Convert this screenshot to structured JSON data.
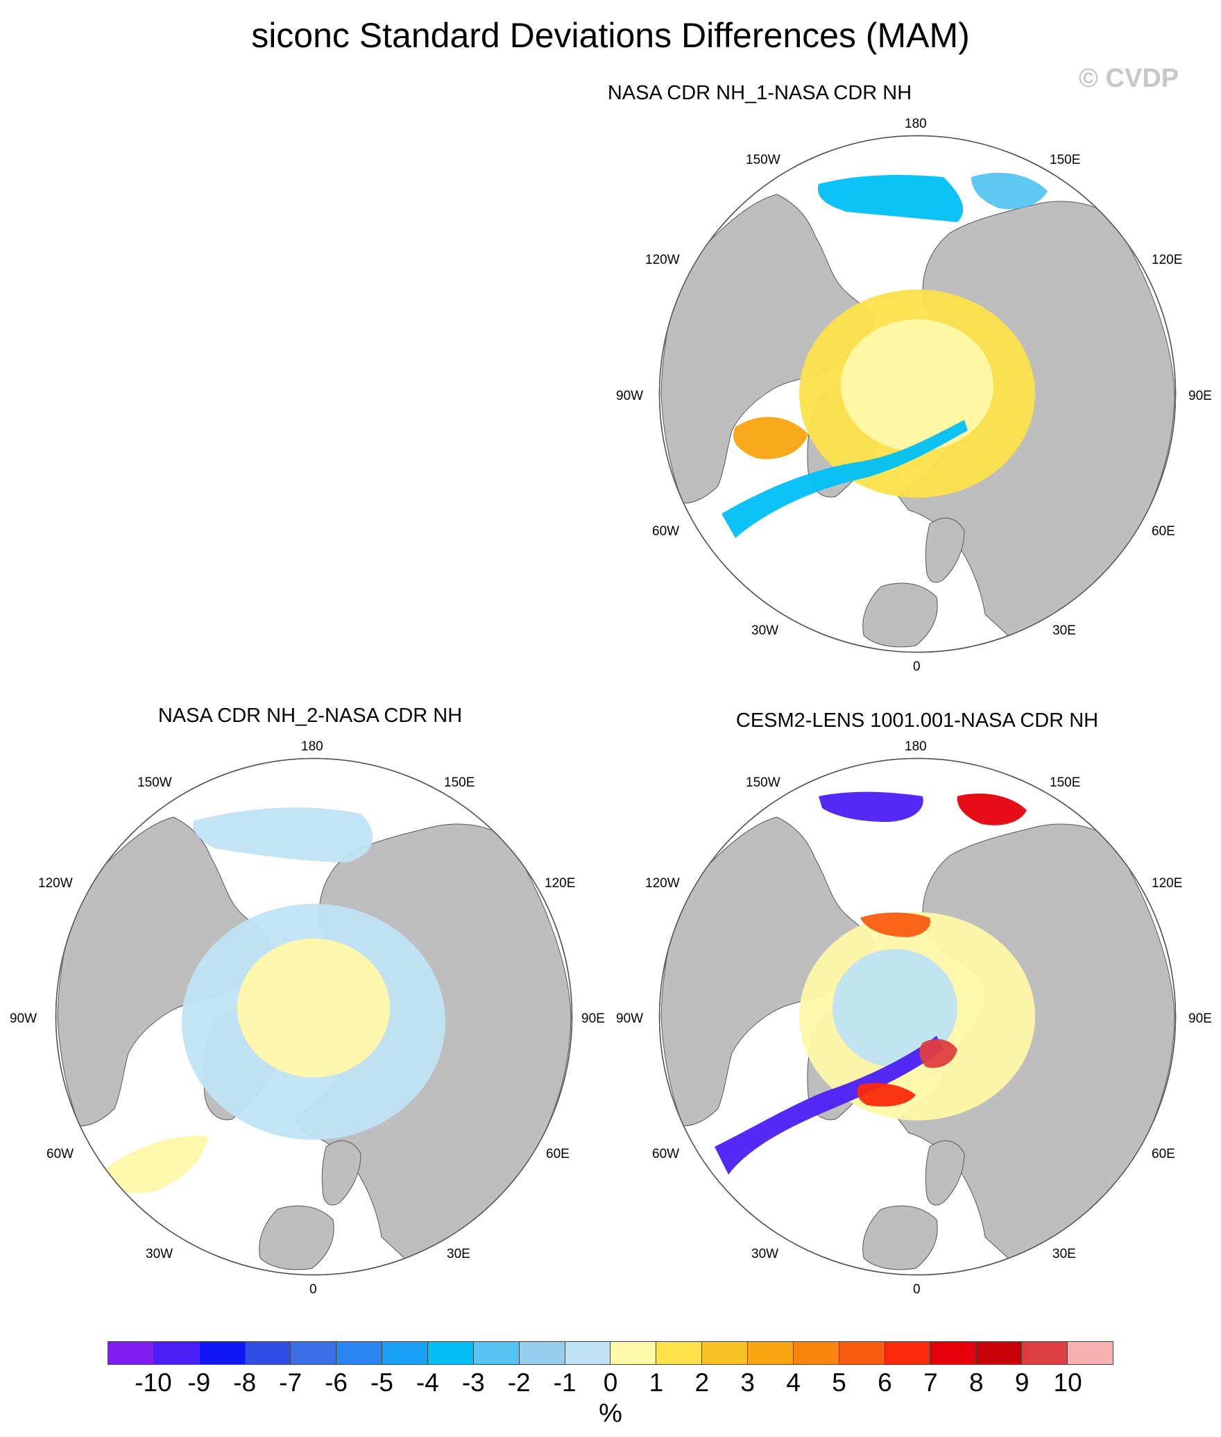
{
  "title": "siconc Standard Deviations Differences (MAM)",
  "watermark": "© CVDP",
  "panels": [
    {
      "id": "p1",
      "title": "NASA CDR NH_1-NASA CDR NH"
    },
    {
      "id": "p2",
      "title": "NASA CDR NH_2-NASA CDR NH"
    },
    {
      "id": "p3",
      "title": "CESM2-LENS 1001.001-NASA CDR NH"
    }
  ],
  "longitude_labels": {
    "l180": "180",
    "l150w": "150W",
    "l150e": "150E",
    "l120w": "120W",
    "l120e": "120E",
    "l90w": "90W",
    "l90e": "90E",
    "l60w": "60W",
    "l60e": "60E",
    "l30w": "30W",
    "l30e": "30E",
    "l0": "0"
  },
  "colorbar": {
    "colors": [
      "#7f1cf0",
      "#4a1ff5",
      "#0f17f5",
      "#2e4ee6",
      "#3a6fe8",
      "#2a85f0",
      "#1aa0f4",
      "#00bff6",
      "#55c4f2",
      "#96cdee",
      "#bfe3f4",
      "#fff8a8",
      "#fde24a",
      "#f8c222",
      "#f8a510",
      "#f98410",
      "#f85c10",
      "#fa2a0c",
      "#e6000a",
      "#c80206",
      "#dd3e3e",
      "#f8b0b0"
    ],
    "tick_labels": [
      "-10",
      "-9",
      "-8",
      "-7",
      "-6",
      "-5",
      "-4",
      "-3",
      "-2",
      "-1",
      "0",
      "1",
      "2",
      "3",
      "4",
      "5",
      "6",
      "7",
      "8",
      "9",
      "10"
    ],
    "unit": "%"
  },
  "style": {
    "land": "#bebebe",
    "ocean": "#ffffff",
    "outline": "#555555"
  }
}
